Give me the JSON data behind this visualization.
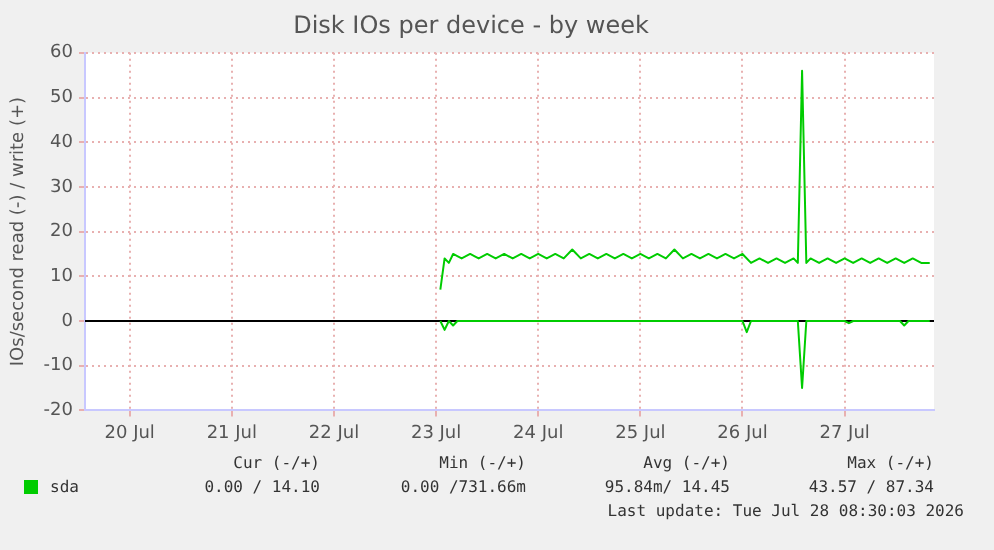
{
  "chart_data": {
    "type": "line",
    "title": "Disk IOs per device - by week",
    "ylabel": "IOs/second read (-) / write (+)",
    "xlim": [
      "2026-07-20T01:30",
      "2026-07-28T09:00"
    ],
    "xticks": [
      {
        "value": "2026-07-20T12:00",
        "label": "20 Jul"
      },
      {
        "value": "2026-07-21T12:00",
        "label": "21 Jul"
      },
      {
        "value": "2026-07-22T12:00",
        "label": "22 Jul"
      },
      {
        "value": "2026-07-23T12:00",
        "label": "23 Jul"
      },
      {
        "value": "2026-07-24T12:00",
        "label": "24 Jul"
      },
      {
        "value": "2026-07-25T12:00",
        "label": "25 Jul"
      },
      {
        "value": "2026-07-26T12:00",
        "label": "26 Jul"
      },
      {
        "value": "2026-07-27T12:00",
        "label": "27 Jul"
      }
    ],
    "ylim": [
      -20,
      60
    ],
    "yticks": [
      -20,
      -10,
      0,
      10,
      20,
      30,
      40,
      50,
      60
    ],
    "grid": true,
    "marker": "none",
    "legend": "bottom left",
    "series": [
      {
        "name": "sda",
        "color": "#00cc00",
        "x": [
          "2026-07-23T13:00",
          "2026-07-23T14:00",
          "2026-07-23T15:00",
          "2026-07-23T16:00",
          "2026-07-23T18:00",
          "2026-07-23T20:00",
          "2026-07-23T22:00",
          "2026-07-24T00:00",
          "2026-07-24T02:00",
          "2026-07-24T04:00",
          "2026-07-24T06:00",
          "2026-07-24T08:00",
          "2026-07-24T10:00",
          "2026-07-24T12:00",
          "2026-07-24T14:00",
          "2026-07-24T16:00",
          "2026-07-24T18:00",
          "2026-07-24T20:00",
          "2026-07-24T22:00",
          "2026-07-25T00:00",
          "2026-07-25T02:00",
          "2026-07-25T04:00",
          "2026-07-25T06:00",
          "2026-07-25T08:00",
          "2026-07-25T10:00",
          "2026-07-25T12:00",
          "2026-07-25T14:00",
          "2026-07-25T16:00",
          "2026-07-25T18:00",
          "2026-07-25T20:00",
          "2026-07-25T22:00",
          "2026-07-26T00:00",
          "2026-07-26T02:00",
          "2026-07-26T04:00",
          "2026-07-26T06:00",
          "2026-07-26T08:00",
          "2026-07-26T10:00",
          "2026-07-26T12:00",
          "2026-07-26T14:00",
          "2026-07-26T16:00",
          "2026-07-26T18:00",
          "2026-07-26T20:00",
          "2026-07-26T22:00",
          "2026-07-27T00:00",
          "2026-07-27T01:00",
          "2026-07-27T02:00",
          "2026-07-27T03:00",
          "2026-07-27T04:00",
          "2026-07-27T06:00",
          "2026-07-27T08:00",
          "2026-07-27T10:00",
          "2026-07-27T12:00",
          "2026-07-27T14:00",
          "2026-07-27T16:00",
          "2026-07-27T18:00",
          "2026-07-27T20:00",
          "2026-07-27T22:00",
          "2026-07-28T00:00",
          "2026-07-28T02:00",
          "2026-07-28T04:00",
          "2026-07-28T06:00",
          "2026-07-28T08:00"
        ],
        "values": [
          7,
          14,
          13,
          15,
          14,
          15,
          14,
          15,
          14,
          15,
          14,
          15,
          14,
          15,
          14,
          15,
          14,
          16,
          14,
          15,
          14,
          15,
          14,
          15,
          14,
          15,
          14,
          15,
          14,
          16,
          14,
          15,
          14,
          15,
          14,
          15,
          14,
          15,
          13,
          14,
          13,
          14,
          13,
          14,
          13,
          56,
          13,
          14,
          13,
          14,
          13,
          14,
          13,
          14,
          13,
          14,
          13,
          14,
          13,
          14,
          13,
          13
        ]
      },
      {
        "color": "#00cc00",
        "x": [
          "2026-07-23T13:00",
          "2026-07-23T14:00",
          "2026-07-23T15:00",
          "2026-07-23T16:00",
          "2026-07-23T17:00",
          "2026-07-26T12:00",
          "2026-07-26T13:00",
          "2026-07-26T14:00",
          "2026-07-27T01:00",
          "2026-07-27T02:00",
          "2026-07-27T03:00",
          "2026-07-27T12:00",
          "2026-07-27T13:00",
          "2026-07-27T14:00",
          "2026-07-28T01:00",
          "2026-07-28T02:00",
          "2026-07-28T03:00",
          "2026-07-28T08:00"
        ],
        "values": [
          0,
          -2,
          0,
          -1,
          0,
          0,
          -2.5,
          0,
          0,
          -15,
          0,
          0,
          -0.5,
          0,
          0,
          -1,
          0,
          0
        ]
      }
    ],
    "ref_lines": [
      {
        "axis": "y",
        "value": 0,
        "color": "#000000"
      }
    ],
    "annotations": [
      "Cur (-/+)",
      "Min (-/+)",
      "Avg (-/+)",
      "Max (-/+)",
      "0.00 / 14.10",
      "0.00 /731.66m",
      "95.84m/ 14.45",
      "43.57 / 87.34",
      "Last update: Tue Jul 28 08:30:03 2026"
    ]
  }
}
